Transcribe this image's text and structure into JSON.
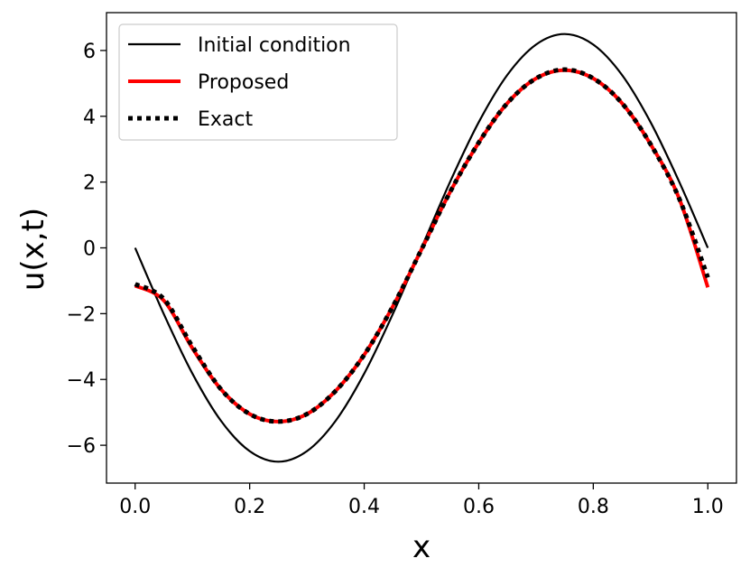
{
  "chart_data": {
    "type": "line",
    "title": "",
    "xlabel": "x",
    "ylabel": "u(x,t)",
    "xlim": [
      -0.05,
      1.05
    ],
    "ylim": [
      -7.15,
      7.15
    ],
    "xticks": [
      0.0,
      0.2,
      0.4,
      0.6,
      0.8,
      1.0
    ],
    "xtick_labels": [
      "0.0",
      "0.2",
      "0.4",
      "0.6",
      "0.8",
      "1.0"
    ],
    "yticks": [
      -6,
      -4,
      -2,
      0,
      2,
      4,
      6
    ],
    "ytick_labels": [
      "−6",
      "−4",
      "−2",
      "0",
      "2",
      "4",
      "6"
    ],
    "grid": false,
    "legend": "top-left",
    "series": [
      {
        "name": "Initial condition",
        "color": "#000000",
        "style": "solid",
        "x": [
          0.0,
          0.05,
          0.1,
          0.15,
          0.2,
          0.25,
          0.3,
          0.35,
          0.4,
          0.45,
          0.5,
          0.55,
          0.6,
          0.65,
          0.7,
          0.75,
          0.8,
          0.85,
          0.9,
          0.95,
          1.0
        ],
        "y": [
          0.0,
          -2.01,
          -3.82,
          -5.26,
          -6.18,
          -6.5,
          -6.18,
          -5.26,
          -3.82,
          -2.01,
          0.0,
          2.01,
          3.82,
          5.26,
          6.18,
          6.5,
          6.18,
          5.26,
          3.82,
          2.01,
          0.0
        ]
      },
      {
        "name": "Proposed",
        "color": "#ff0000",
        "style": "solid",
        "x": [
          0.0,
          0.05,
          0.1,
          0.15,
          0.2,
          0.25,
          0.3,
          0.35,
          0.4,
          0.45,
          0.5,
          0.55,
          0.6,
          0.65,
          0.7,
          0.75,
          0.8,
          0.85,
          0.9,
          0.95,
          1.0
        ],
        "y": [
          -1.15,
          -1.6,
          -3.05,
          -4.3,
          -5.05,
          -5.28,
          -5.05,
          -4.35,
          -3.25,
          -1.78,
          -0.05,
          1.7,
          3.2,
          4.4,
          5.15,
          5.4,
          5.15,
          4.4,
          3.15,
          1.5,
          -1.2
        ]
      },
      {
        "name": "Exact",
        "color": "#000000",
        "style": "dotted",
        "x": [
          0.0,
          0.05,
          0.1,
          0.15,
          0.2,
          0.25,
          0.3,
          0.35,
          0.4,
          0.45,
          0.5,
          0.55,
          0.6,
          0.65,
          0.7,
          0.75,
          0.8,
          0.85,
          0.9,
          0.95,
          1.0
        ],
        "y": [
          -1.1,
          -1.55,
          -3.0,
          -4.3,
          -5.05,
          -5.28,
          -5.05,
          -4.35,
          -3.25,
          -1.78,
          -0.05,
          1.7,
          3.2,
          4.4,
          5.15,
          5.42,
          5.15,
          4.4,
          3.15,
          1.5,
          -0.9
        ]
      }
    ]
  }
}
